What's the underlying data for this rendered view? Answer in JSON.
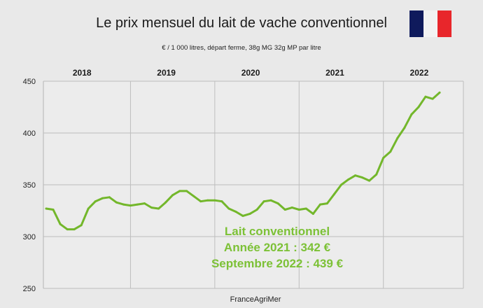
{
  "title": "Le prix mensuel du lait de vache conventionnel",
  "subtitle": "€ / 1 000 litres, départ ferme, 38g MG 32g MP par litre",
  "source": "FranceAgriMer",
  "colors": {
    "line": "#73b72b",
    "annotation": "#7cc136",
    "grid": "#bdbdbd",
    "flag_blue": "#0f1a5c",
    "flag_white": "#f2f2f2",
    "flag_red": "#e8262b"
  },
  "annotation": {
    "line1": "Lait conventionnel",
    "line2": "Année 2021 : 342 €",
    "line3": "Septembre 2022 : 439 €"
  },
  "chart_data": {
    "type": "line",
    "title": "Le prix mensuel du lait de vache conventionnel",
    "subtitle": "€ / 1 000 litres, départ ferme, 38g MG 32g MP par litre",
    "xlabel": "",
    "ylabel": "",
    "ylim": [
      250,
      450
    ],
    "yticks": [
      "450",
      "400",
      "350",
      "300",
      "250"
    ],
    "year_labels": [
      "2018",
      "2019",
      "2020",
      "2021",
      "2022"
    ],
    "grid": true,
    "series": [
      {
        "name": "Lait conventionnel",
        "x": [
          "2018-01",
          "2018-02",
          "2018-03",
          "2018-04",
          "2018-05",
          "2018-06",
          "2018-07",
          "2018-08",
          "2018-09",
          "2018-10",
          "2018-11",
          "2018-12",
          "2019-01",
          "2019-02",
          "2019-03",
          "2019-04",
          "2019-05",
          "2019-06",
          "2019-07",
          "2019-08",
          "2019-09",
          "2019-10",
          "2019-11",
          "2019-12",
          "2020-01",
          "2020-02",
          "2020-03",
          "2020-04",
          "2020-05",
          "2020-06",
          "2020-07",
          "2020-08",
          "2020-09",
          "2020-10",
          "2020-11",
          "2020-12",
          "2021-01",
          "2021-02",
          "2021-03",
          "2021-04",
          "2021-05",
          "2021-06",
          "2021-07",
          "2021-08",
          "2021-09",
          "2021-10",
          "2021-11",
          "2021-12",
          "2022-01",
          "2022-02",
          "2022-03",
          "2022-04",
          "2022-05",
          "2022-06",
          "2022-07",
          "2022-08",
          "2022-09"
        ],
        "values": [
          327,
          326,
          312,
          307,
          307,
          311,
          327,
          334,
          337,
          338,
          333,
          331,
          330,
          331,
          332,
          328,
          327,
          333,
          340,
          344,
          344,
          339,
          334,
          335,
          335,
          334,
          327,
          324,
          320,
          322,
          326,
          334,
          335,
          332,
          326,
          328,
          326,
          327,
          322,
          331,
          332,
          341,
          350,
          355,
          359,
          357,
          354,
          360,
          376,
          382,
          395,
          405,
          418,
          425,
          435,
          433,
          439
        ]
      }
    ]
  }
}
